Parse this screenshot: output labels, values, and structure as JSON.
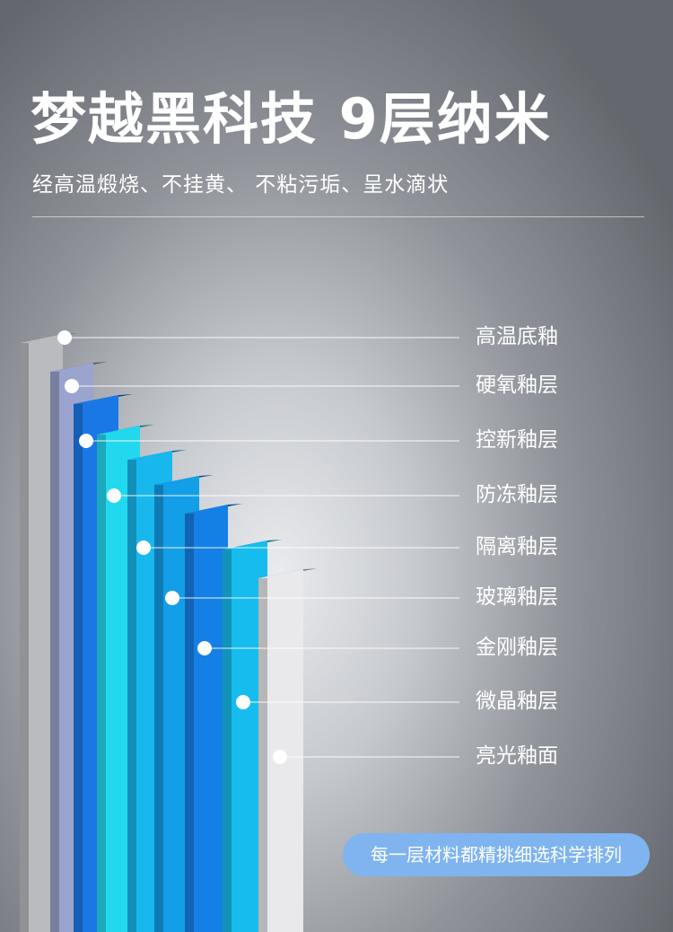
{
  "header": {
    "title": "梦越黑科技 9层纳米",
    "subtitle": "经高温煅烧、不挂黄、 不粘污垢、呈水滴状"
  },
  "layers": [
    {
      "label": "高温底釉",
      "color": "#b9bbbf"
    },
    {
      "label": "硬氧釉层",
      "color": "#9ba3cf"
    },
    {
      "label": "控新釉层",
      "color": "#1a78e6"
    },
    {
      "label": "防冻釉层",
      "color": "#22d8ee"
    },
    {
      "label": "隔离釉层",
      "color": "#18b8ee"
    },
    {
      "label": "玻璃釉层",
      "color": "#139ee8"
    },
    {
      "label": "金刚釉层",
      "color": "#1480e6"
    },
    {
      "label": "微晶釉层",
      "color": "#16bcee"
    },
    {
      "label": "亮光釉面",
      "color": "#e9e9eb"
    }
  ],
  "footer": {
    "badge": "每一层材料都精挑细选科学排列"
  }
}
